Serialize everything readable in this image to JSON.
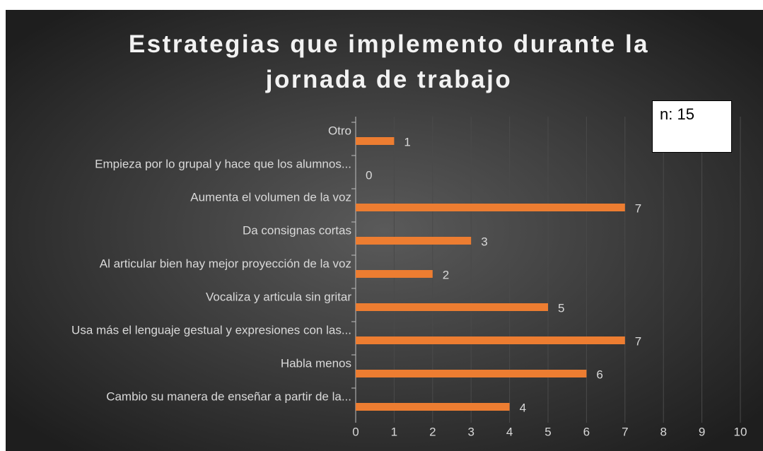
{
  "chart_data": {
    "type": "barh",
    "title": "Estrategias que implemento durante la jornada de trabajo",
    "annotation": "n: 15",
    "categories": [
      "Otro",
      "Empieza por lo grupal y hace que los alumnos...",
      "Aumenta el volumen de la voz",
      "Da consignas cortas",
      "Al articular bien hay mejor proyección de la voz",
      "Vocaliza y articula sin gritar",
      "Usa más el lenguaje gestual y expresiones con las...",
      "Habla menos",
      "Cambio su manera de enseñar a partir de la..."
    ],
    "values": [
      1,
      0,
      7,
      3,
      2,
      5,
      7,
      6,
      4
    ],
    "color": "#ed7d31",
    "xlim": [
      0,
      10
    ],
    "xticks": [
      0,
      1,
      2,
      3,
      4,
      5,
      6,
      7,
      8,
      9,
      10
    ],
    "grid": true
  }
}
